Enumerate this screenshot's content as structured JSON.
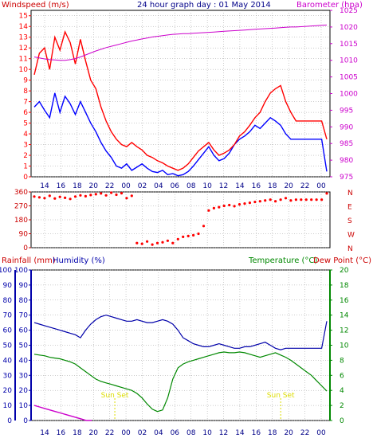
{
  "header": {
    "windspeed_label": "Windspeed (m/s)",
    "title": "24 hour graph day : 01 May 2014",
    "barometer_label": "Barometer (hpa)",
    "rainfall_label": "Rainfall (mm)",
    "humidity_label": "Humidity (%)",
    "temperature_label": "Temperature (°C)",
    "dewpoint_label": "Dew Point (°C)",
    "sunset_label": "Sun Set"
  },
  "colors": {
    "wind_gust": "#ff0000",
    "wind_avg": "#0000ff",
    "barometer": "#cc00cc",
    "direction": "#ff0000",
    "dir_axis": "#cc0000",
    "rain": "#cc00cc",
    "humidity": "#0000aa",
    "temperature": "#008800",
    "sunset": "#dddd00",
    "frame": "#000000",
    "grid": "#999999"
  },
  "chart_data": [
    {
      "type": "line",
      "name": "wind-barometer",
      "x_ticks": [
        "14",
        "16",
        "18",
        "20",
        "22",
        "00",
        "02",
        "04",
        "06",
        "08",
        "10",
        "12",
        "14",
        "16",
        "18",
        "20",
        "22",
        "00"
      ],
      "y_left_ticks": [
        0,
        1,
        2,
        3,
        4,
        5,
        6,
        7,
        8,
        9,
        10,
        11,
        12,
        13,
        14,
        15
      ],
      "y_right_ticks": [
        975,
        980,
        985,
        990,
        995,
        1000,
        1005,
        1010,
        1015,
        1020,
        1025
      ],
      "ylim_left": [
        0,
        15.5
      ],
      "ylim_right": [
        975,
        1025
      ],
      "series": [
        {
          "name": "Windspeed",
          "axis": "left",
          "color_key": "wind_avg",
          "values": [
            6.5,
            7.0,
            6.2,
            5.5,
            7.8,
            6.0,
            7.5,
            6.8,
            5.8,
            7.0,
            6.0,
            5.0,
            4.2,
            3.2,
            2.4,
            1.8,
            1.0,
            0.8,
            1.2,
            0.6,
            0.9,
            1.2,
            0.8,
            0.5,
            0.4,
            0.6,
            0.2,
            0.3,
            0.1,
            0.2,
            0.5,
            1.0,
            1.6,
            2.2,
            2.8,
            2.0,
            1.5,
            1.7,
            2.2,
            3.0,
            3.5,
            3.8,
            4.2,
            4.8,
            4.5,
            5.0,
            5.5,
            5.2,
            4.8,
            4.0,
            3.5,
            3.5,
            3.5,
            3.5,
            3.5,
            3.5,
            3.5,
            0.5
          ]
        },
        {
          "name": "Windspeed Gust",
          "axis": "left",
          "color_key": "wind_gust",
          "values": [
            9.5,
            11.5,
            12.0,
            10.0,
            13.0,
            11.8,
            13.5,
            12.5,
            10.5,
            12.8,
            10.8,
            9.0,
            8.2,
            6.5,
            5.2,
            4.2,
            3.5,
            3.0,
            2.8,
            3.2,
            2.8,
            2.5,
            2.0,
            1.8,
            1.5,
            1.3,
            1.0,
            0.8,
            0.6,
            0.8,
            1.2,
            1.8,
            2.4,
            2.8,
            3.2,
            2.5,
            2.0,
            2.2,
            2.5,
            3.0,
            3.8,
            4.2,
            4.8,
            5.5,
            6.0,
            7.0,
            7.8,
            8.2,
            8.5,
            7.0,
            6.0,
            5.2,
            5.2,
            5.2,
            5.2,
            5.2,
            5.2,
            3.5
          ]
        },
        {
          "name": "Barometer",
          "axis": "right",
          "color_key": "barometer",
          "values": [
            1011.0,
            1010.7,
            1010.4,
            1010.2,
            1010.1,
            1010.0,
            1010.0,
            1010.2,
            1010.5,
            1011.0,
            1011.6,
            1012.2,
            1012.8,
            1013.3,
            1013.8,
            1014.2,
            1014.6,
            1015.0,
            1015.4,
            1015.8,
            1016.1,
            1016.4,
            1016.7,
            1017.0,
            1017.2,
            1017.4,
            1017.6,
            1017.8,
            1017.9,
            1018.0,
            1018.0,
            1018.1,
            1018.2,
            1018.3,
            1018.4,
            1018.5,
            1018.6,
            1018.7,
            1018.8,
            1018.9,
            1019.0,
            1019.1,
            1019.2,
            1019.3,
            1019.4,
            1019.5,
            1019.6,
            1019.7,
            1019.8,
            1019.9,
            1020.0,
            1020.0,
            1020.1,
            1020.2,
            1020.3,
            1020.4,
            1020.5,
            1020.6
          ]
        }
      ]
    },
    {
      "type": "scatter",
      "name": "wind-direction",
      "y_left_ticks": [
        0,
        90,
        180,
        270,
        360
      ],
      "y_right_labels": [
        "N",
        "W",
        "S",
        "E",
        "N"
      ],
      "ylim": [
        0,
        360
      ],
      "series": [
        {
          "name": "Wind Direction",
          "color_key": "direction",
          "values": [
            330,
            325,
            320,
            335,
            318,
            328,
            322,
            315,
            330,
            338,
            332,
            340,
            345,
            350,
            338,
            355,
            342,
            352,
            320,
            335,
            30,
            25,
            40,
            20,
            30,
            35,
            45,
            30,
            55,
            70,
            75,
            80,
            90,
            140,
            240,
            255,
            262,
            270,
            275,
            268,
            280,
            285,
            290,
            295,
            300,
            305,
            310,
            300,
            310,
            320,
            305,
            310,
            310,
            310,
            310,
            310,
            310,
            350
          ]
        }
      ]
    },
    {
      "type": "line",
      "name": "rain-humidity-temperature",
      "y_left_ticks": [
        0,
        10,
        20,
        30,
        40,
        50,
        60,
        70,
        80,
        90,
        100
      ],
      "y_right_ticks": [
        0,
        2,
        4,
        6,
        8,
        10,
        12,
        14,
        16,
        18,
        20
      ],
      "ylim_left": [
        0,
        100
      ],
      "ylim_right": [
        0,
        20
      ],
      "series": [
        {
          "name": "Humidity",
          "axis": "left",
          "color_key": "humidity",
          "values": [
            65,
            64,
            63,
            62,
            61,
            60,
            59,
            58,
            57,
            55,
            60,
            64,
            67,
            69,
            70,
            69,
            68,
            67,
            66,
            66,
            67,
            66,
            65,
            65,
            66,
            67,
            66,
            64,
            60,
            55,
            53,
            51,
            50,
            49,
            49,
            50,
            51,
            50,
            49,
            48,
            48,
            49,
            49,
            50,
            51,
            52,
            50,
            48,
            47,
            48,
            48,
            48,
            48,
            48,
            48,
            48,
            48,
            66
          ]
        },
        {
          "name": "Temperature",
          "axis": "right",
          "color_key": "temperature",
          "values": [
            8.8,
            8.7,
            8.6,
            8.4,
            8.3,
            8.2,
            8.0,
            7.8,
            7.5,
            7.0,
            6.5,
            6.0,
            5.5,
            5.2,
            5.0,
            4.8,
            4.6,
            4.4,
            4.2,
            4.0,
            3.6,
            3.0,
            2.2,
            1.5,
            1.2,
            1.4,
            3.0,
            5.5,
            7.0,
            7.5,
            7.8,
            8.0,
            8.2,
            8.4,
            8.6,
            8.8,
            9.0,
            9.1,
            9.0,
            9.0,
            9.1,
            9.0,
            8.8,
            8.6,
            8.4,
            8.6,
            8.8,
            9.0,
            8.7,
            8.4,
            8.0,
            7.5,
            7.0,
            6.5,
            6.0,
            5.3,
            4.6,
            3.9
          ]
        },
        {
          "name": "Rainfall",
          "axis": "left",
          "color_key": "rain",
          "values": [
            10,
            9,
            8,
            7,
            6,
            5,
            4,
            3,
            2,
            1,
            0,
            0
          ]
        }
      ]
    }
  ]
}
